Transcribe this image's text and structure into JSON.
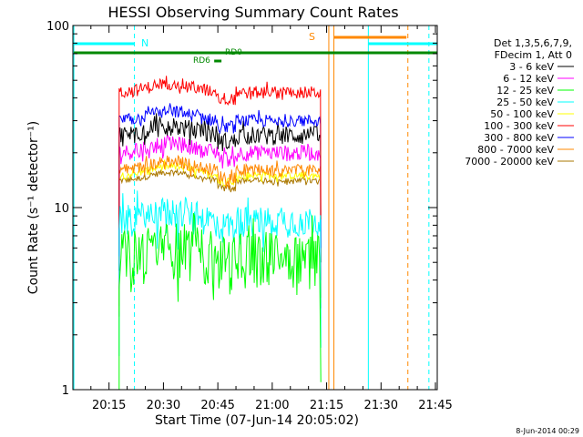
{
  "chart_data": {
    "type": "line",
    "title": "HESSI Observing Summary Count Rates",
    "xlabel": "Start Time (07-Jun-14 20:05:02)",
    "ylabel": "Count Rate (s⁻¹ detector⁻¹)",
    "yscale": "log",
    "ylim": [
      1,
      100
    ],
    "xlim_minutes": [
      5.03,
      105.5
    ],
    "x_ticks": [
      {
        "label": "20:15",
        "min": 15
      },
      {
        "label": "20:30",
        "min": 30
      },
      {
        "label": "20:45",
        "min": 45
      },
      {
        "label": "21:00",
        "min": 60
      },
      {
        "label": "21:15",
        "min": 75
      },
      {
        "label": "21:30",
        "min": 90
      },
      {
        "label": "21:45",
        "min": 105
      }
    ],
    "y_ticks": [
      {
        "label": "1",
        "value": 1
      },
      {
        "label": "10",
        "value": 10
      },
      {
        "label": "100",
        "value": 100
      }
    ],
    "legend_header": [
      "Det 1,3,5,6,7,9,",
      "FDecim 1, Att 0"
    ],
    "legend_position": "right",
    "series": [
      {
        "name": "3 - 6 keV",
        "color": "#000000",
        "level": 25
      },
      {
        "name": "6 - 12 keV",
        "color": "#ff00ff",
        "level": 20
      },
      {
        "name": "12 - 25 keV",
        "color": "#00ff00",
        "level": 5.5
      },
      {
        "name": "25 - 50 keV",
        "color": "#00ffff",
        "level": 8.5
      },
      {
        "name": "50 - 100 keV",
        "color": "#ffff00",
        "level": 15
      },
      {
        "name": "100 - 300 keV",
        "color": "#ff0000",
        "level": 43
      },
      {
        "name": "300 - 800 keV",
        "color": "#0000ff",
        "level": 30
      },
      {
        "name": "800 - 7000 keV",
        "color": "#ff8800",
        "level": 16
      },
      {
        "name": "7000 - 20000 keV",
        "color": "#aa7700",
        "level": 14
      }
    ],
    "annotations": {
      "N": "N",
      "S": "S",
      "RD0": "RD0",
      "RD6": "RD6"
    },
    "timestamp": "8-Jun-2014 00:29"
  }
}
